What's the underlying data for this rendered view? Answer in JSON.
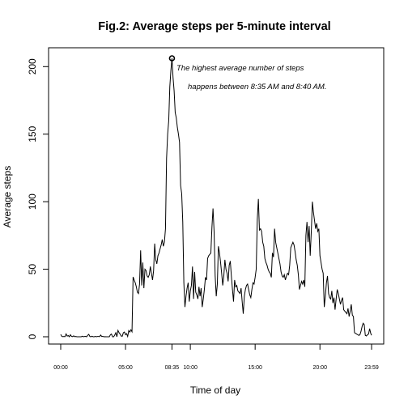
{
  "chart_data": {
    "type": "line",
    "title": "Fig.2: Average steps per 5-minute interval",
    "xlabel": "Time of day",
    "ylabel": "Average steps",
    "xlim": [
      0,
      1439
    ],
    "ylim": [
      0,
      206.17
    ],
    "x_ticks": [
      {
        "minute": 0,
        "label": "00:00"
      },
      {
        "minute": 300,
        "label": "05:00"
      },
      {
        "minute": 515,
        "label": "08:35"
      },
      {
        "minute": 600,
        "label": "10:00"
      },
      {
        "minute": 900,
        "label": "15:00"
      },
      {
        "minute": 1200,
        "label": "20:00"
      },
      {
        "minute": 1439,
        "label": "23:59"
      }
    ],
    "y_ticks": [
      {
        "value": 0,
        "label": "0"
      },
      {
        "value": 50,
        "label": "50"
      },
      {
        "value": 100,
        "label": "100"
      },
      {
        "value": 150,
        "label": "150"
      },
      {
        "value": 200,
        "label": "200"
      }
    ],
    "series": [
      {
        "name": "Average steps",
        "color": "#000000",
        "points": [
          [
            0,
            1.7
          ],
          [
            5,
            0.3
          ],
          [
            10,
            0.1
          ],
          [
            15,
            0.2
          ],
          [
            20,
            0.1
          ],
          [
            25,
            2.1
          ],
          [
            30,
            0.5
          ],
          [
            35,
            0.9
          ],
          [
            40,
            0.0
          ],
          [
            45,
            1.5
          ],
          [
            50,
            0.3
          ],
          [
            55,
            0.1
          ],
          [
            60,
            0.7
          ],
          [
            65,
            0.1
          ],
          [
            70,
            0.2
          ],
          [
            75,
            0.0
          ],
          [
            80,
            0.0
          ],
          [
            85,
            0.0
          ],
          [
            90,
            0.0
          ],
          [
            95,
            0.0
          ],
          [
            100,
            0.4
          ],
          [
            105,
            0.0
          ],
          [
            110,
            0.2
          ],
          [
            115,
            0.3
          ],
          [
            120,
            0.0
          ],
          [
            125,
            1.1
          ],
          [
            130,
            1.8
          ],
          [
            135,
            0.2
          ],
          [
            140,
            0.0
          ],
          [
            145,
            0.4
          ],
          [
            150,
            0.0
          ],
          [
            155,
            0.0
          ],
          [
            160,
            0.3
          ],
          [
            165,
            0.0
          ],
          [
            170,
            0.2
          ],
          [
            175,
            0.2
          ],
          [
            180,
            0.1
          ],
          [
            185,
            1.3
          ],
          [
            190,
            0.2
          ],
          [
            195,
            0.3
          ],
          [
            200,
            0.0
          ],
          [
            205,
            0.1
          ],
          [
            210,
            0.0
          ],
          [
            215,
            0.0
          ],
          [
            220,
            0.0
          ],
          [
            225,
            0.0
          ],
          [
            230,
            1.5
          ],
          [
            235,
            2.0
          ],
          [
            240,
            0.0
          ],
          [
            245,
            0.0
          ],
          [
            250,
            1.3
          ],
          [
            255,
            3.0
          ],
          [
            260,
            0.0
          ],
          [
            265,
            4.7
          ],
          [
            270,
            3.0
          ],
          [
            275,
            2.0
          ],
          [
            280,
            0.5
          ],
          [
            285,
            0.4
          ],
          [
            290,
            3.0
          ],
          [
            295,
            3.5
          ],
          [
            300,
            1.5
          ],
          [
            305,
            2.3
          ],
          [
            310,
            0.2
          ],
          [
            315,
            4.6
          ],
          [
            320,
            3.5
          ],
          [
            325,
            5.2
          ],
          [
            330,
            3.7
          ],
          [
            335,
            44.3
          ],
          [
            340,
            42.0
          ],
          [
            345,
            40.0
          ],
          [
            350,
            37.0
          ],
          [
            355,
            33.0
          ],
          [
            360,
            32.0
          ],
          [
            365,
            39.0
          ],
          [
            370,
            64.0
          ],
          [
            375,
            38.0
          ],
          [
            380,
            55.0
          ],
          [
            385,
            36.0
          ],
          [
            390,
            50.0
          ],
          [
            395,
            49.0
          ],
          [
            400,
            45.0
          ],
          [
            405,
            44.0
          ],
          [
            410,
            46.0
          ],
          [
            415,
            52.0
          ],
          [
            420,
            47.0
          ],
          [
            425,
            42.0
          ],
          [
            430,
            49.0
          ],
          [
            435,
            69.0
          ],
          [
            440,
            57.0
          ],
          [
            445,
            54.0
          ],
          [
            450,
            60.0
          ],
          [
            455,
            62.0
          ],
          [
            460,
            65.0
          ],
          [
            465,
            68.0
          ],
          [
            470,
            72.0
          ],
          [
            475,
            67.0
          ],
          [
            480,
            70.0
          ],
          [
            485,
            80.0
          ],
          [
            490,
            132.0
          ],
          [
            495,
            150.0
          ],
          [
            500,
            160.0
          ],
          [
            505,
            185.0
          ],
          [
            510,
            197.0
          ],
          [
            515,
            206.17
          ],
          [
            520,
            192.0
          ],
          [
            525,
            182.0
          ],
          [
            530,
            166.0
          ],
          [
            535,
            162.0
          ],
          [
            540,
            155.0
          ],
          [
            545,
            150.0
          ],
          [
            550,
            144.0
          ],
          [
            555,
            112.0
          ],
          [
            560,
            106.0
          ],
          [
            565,
            85.0
          ],
          [
            570,
            40.0
          ],
          [
            575,
            22.0
          ],
          [
            580,
            30.0
          ],
          [
            585,
            36.0
          ],
          [
            590,
            40.0
          ],
          [
            595,
            26.0
          ],
          [
            600,
            34.0
          ],
          [
            605,
            38.0
          ],
          [
            610,
            52.0
          ],
          [
            615,
            28.0
          ],
          [
            620,
            48.0
          ],
          [
            625,
            33.0
          ],
          [
            630,
            31.0
          ],
          [
            635,
            28.0
          ],
          [
            640,
            37.0
          ],
          [
            645,
            30.0
          ],
          [
            650,
            36.0
          ],
          [
            655,
            22.0
          ],
          [
            660,
            28.0
          ],
          [
            665,
            35.0
          ],
          [
            670,
            44.0
          ],
          [
            675,
            42.0
          ],
          [
            680,
            58.0
          ],
          [
            685,
            60.0
          ],
          [
            690,
            61.0
          ],
          [
            695,
            62.0
          ],
          [
            700,
            81.0
          ],
          [
            705,
            95.0
          ],
          [
            710,
            78.0
          ],
          [
            715,
            45.0
          ],
          [
            720,
            30.0
          ],
          [
            725,
            39.0
          ],
          [
            730,
            67.0
          ],
          [
            735,
            62.0
          ],
          [
            740,
            55.0
          ],
          [
            745,
            47.0
          ],
          [
            750,
            38.0
          ],
          [
            755,
            45.0
          ],
          [
            760,
            57.0
          ],
          [
            765,
            50.0
          ],
          [
            770,
            47.0
          ],
          [
            775,
            41.0
          ],
          [
            780,
            53.0
          ],
          [
            785,
            56.0
          ],
          [
            790,
            45.0
          ],
          [
            795,
            35.0
          ],
          [
            800,
            26.0
          ],
          [
            805,
            42.0
          ],
          [
            810,
            37.0
          ],
          [
            815,
            38.0
          ],
          [
            820,
            34.0
          ],
          [
            825,
            33.0
          ],
          [
            830,
            32.0
          ],
          [
            835,
            36.0
          ],
          [
            840,
            26.0
          ],
          [
            845,
            17.0
          ],
          [
            850,
            30.0
          ],
          [
            855,
            35.0
          ],
          [
            860,
            38.0
          ],
          [
            865,
            39.0
          ],
          [
            870,
            35.0
          ],
          [
            875,
            31.0
          ],
          [
            880,
            29.0
          ],
          [
            885,
            35.0
          ],
          [
            890,
            40.0
          ],
          [
            895,
            39.0
          ],
          [
            900,
            44.0
          ],
          [
            905,
            50.0
          ],
          [
            910,
            87.0
          ],
          [
            915,
            102.0
          ],
          [
            920,
            79.0
          ],
          [
            925,
            80.0
          ],
          [
            930,
            78.0
          ],
          [
            935,
            70.0
          ],
          [
            940,
            67.0
          ],
          [
            945,
            58.0
          ],
          [
            950,
            55.0
          ],
          [
            955,
            53.0
          ],
          [
            960,
            50.0
          ],
          [
            965,
            48.0
          ],
          [
            970,
            47.0
          ],
          [
            975,
            44.0
          ],
          [
            980,
            62.0
          ],
          [
            985,
            59.0
          ],
          [
            990,
            80.0
          ],
          [
            995,
            70.0
          ],
          [
            1000,
            66.0
          ],
          [
            1005,
            62.0
          ],
          [
            1010,
            58.0
          ],
          [
            1015,
            54.0
          ],
          [
            1020,
            48.0
          ],
          [
            1025,
            45.0
          ],
          [
            1030,
            44.0
          ],
          [
            1035,
            46.0
          ],
          [
            1040,
            42.0
          ],
          [
            1045,
            45.0
          ],
          [
            1050,
            47.0
          ],
          [
            1055,
            46.0
          ],
          [
            1060,
            53.0
          ],
          [
            1065,
            66.0
          ],
          [
            1070,
            68.0
          ],
          [
            1075,
            70.0
          ],
          [
            1080,
            68.0
          ],
          [
            1085,
            63.0
          ],
          [
            1090,
            57.0
          ],
          [
            1095,
            53.0
          ],
          [
            1100,
            46.0
          ],
          [
            1105,
            35.0
          ],
          [
            1110,
            38.0
          ],
          [
            1115,
            41.0
          ],
          [
            1120,
            39.0
          ],
          [
            1125,
            42.0
          ],
          [
            1130,
            37.0
          ],
          [
            1135,
            75.0
          ],
          [
            1140,
            85.0
          ],
          [
            1145,
            70.0
          ],
          [
            1150,
            82.0
          ],
          [
            1155,
            60.0
          ],
          [
            1160,
            78.0
          ],
          [
            1165,
            100.0
          ],
          [
            1170,
            92.0
          ],
          [
            1175,
            86.0
          ],
          [
            1180,
            80.0
          ],
          [
            1185,
            84.0
          ],
          [
            1190,
            78.0
          ],
          [
            1195,
            80.0
          ],
          [
            1200,
            60.0
          ],
          [
            1205,
            55.0
          ],
          [
            1210,
            50.0
          ],
          [
            1215,
            47.0
          ],
          [
            1220,
            22.0
          ],
          [
            1225,
            30.0
          ],
          [
            1230,
            40.0
          ],
          [
            1235,
            45.0
          ],
          [
            1240,
            32.0
          ],
          [
            1245,
            29.0
          ],
          [
            1250,
            28.0
          ],
          [
            1255,
            34.0
          ],
          [
            1260,
            25.0
          ],
          [
            1265,
            29.0
          ],
          [
            1270,
            20.0
          ],
          [
            1275,
            28.0
          ],
          [
            1280,
            35.0
          ],
          [
            1285,
            32.0
          ],
          [
            1290,
            28.0
          ],
          [
            1295,
            24.0
          ],
          [
            1300,
            27.0
          ],
          [
            1305,
            29.0
          ],
          [
            1310,
            20.0
          ],
          [
            1315,
            19.0
          ],
          [
            1320,
            18.0
          ],
          [
            1325,
            17.0
          ],
          [
            1330,
            21.0
          ],
          [
            1335,
            15.0
          ],
          [
            1340,
            19.0
          ],
          [
            1345,
            24.0
          ],
          [
            1350,
            16.0
          ],
          [
            1355,
            15.0
          ],
          [
            1360,
            3.0
          ],
          [
            1365,
            2.5
          ],
          [
            1370,
            2.0
          ],
          [
            1375,
            1.5
          ],
          [
            1380,
            1.0
          ],
          [
            1385,
            1.5
          ],
          [
            1390,
            4.0
          ],
          [
            1395,
            7.5
          ],
          [
            1400,
            10.0
          ],
          [
            1405,
            9.0
          ],
          [
            1410,
            1.0
          ],
          [
            1415,
            0.6
          ],
          [
            1420,
            1.5
          ],
          [
            1425,
            2.0
          ],
          [
            1430,
            6.0
          ],
          [
            1435,
            2.6
          ],
          [
            1439,
            1.1
          ]
        ]
      }
    ],
    "peak": {
      "minute": 515,
      "value": 206.17
    },
    "annotations": [
      "The highest average number of steps",
      "happens between 8:35 AM and 8:40 AM."
    ],
    "grid": false
  }
}
